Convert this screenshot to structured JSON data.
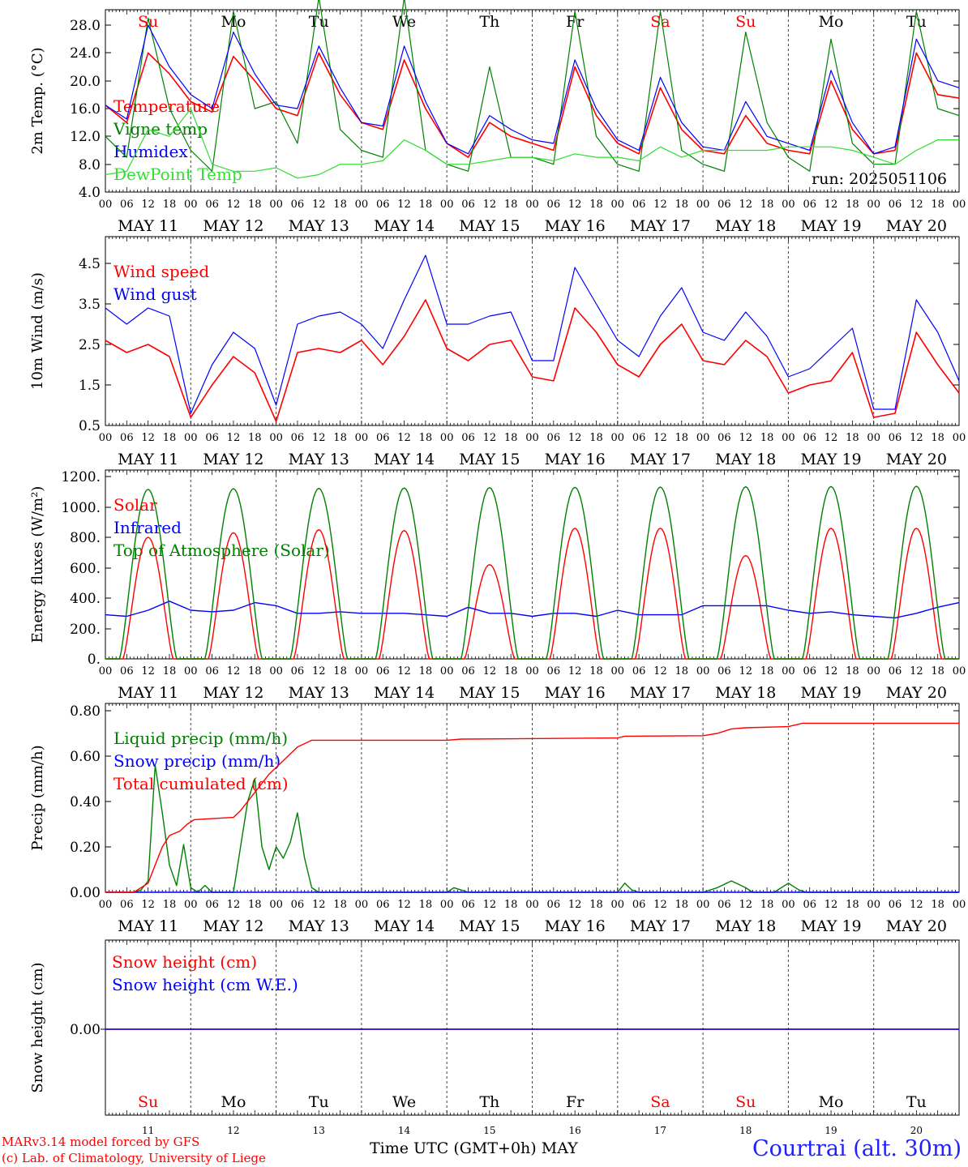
{
  "footer": {
    "model": "MARv3.14 model forced by GFS",
    "copyright": "(c) Lab. of Climatology, University of Liege",
    "xaxis": "Time UTC (GMT+0h)",
    "month": "MAY",
    "station": "Courtrai (alt. 30m)"
  },
  "run_label": "run: 2025051106",
  "days": {
    "names": [
      "Su",
      "Mo",
      "Tu",
      "We",
      "Th",
      "Fr",
      "Sa",
      "Su",
      "Mo",
      "Tu"
    ],
    "weekend": [
      true,
      false,
      false,
      false,
      false,
      false,
      true,
      true,
      false,
      false
    ],
    "dates": [
      "MAY 11",
      "MAY 12",
      "MAY 13",
      "MAY 14",
      "MAY 15",
      "MAY 16",
      "MAY 17",
      "MAY 18",
      "MAY 19",
      "MAY 20"
    ],
    "numbers": [
      "11",
      "12",
      "13",
      "14",
      "15",
      "16",
      "17",
      "18",
      "19",
      "20"
    ],
    "hour_ticks": [
      "00",
      "06",
      "12",
      "18"
    ],
    "final_tick": "00"
  },
  "colors": {
    "red": "#ff0000",
    "green": "#008000",
    "blue": "#0000ff",
    "lightgreen": "#33dd33",
    "weekend": "#ff0000",
    "weekday": "#000000"
  },
  "chart_data": [
    {
      "type": "line",
      "ylabel": "2m Temp. (°C)",
      "ylim": [
        4,
        30
      ],
      "yticks": [
        "4.0",
        "8.0",
        "12.0",
        "16.0",
        "20.0",
        "24.0",
        "28.0"
      ],
      "x": "hours since MAY 11 00 UTC, sampled every 6h (0..240)",
      "series": [
        {
          "name": "Temperature",
          "color": "red",
          "values": [
            16.5,
            14,
            24,
            21,
            17,
            15.5,
            23.5,
            20,
            16,
            15,
            24,
            18,
            14,
            13,
            23,
            16,
            11,
            9,
            14,
            12,
            11,
            10,
            22,
            15,
            11,
            9.5,
            19,
            13,
            10,
            9.5,
            15,
            11,
            10,
            9.5,
            20,
            13,
            9.5,
            10,
            24,
            18,
            17.5
          ]
        },
        {
          "name": "Vigne temp",
          "color": "green",
          "values": [
            12,
            9,
            29,
            16,
            10,
            7,
            30,
            16,
            17,
            11,
            32,
            13,
            10,
            9,
            32,
            10,
            8,
            7,
            22,
            9,
            9,
            8,
            30,
            12,
            8,
            7,
            30,
            10,
            8,
            7,
            27,
            14,
            9,
            7,
            26,
            11,
            8,
            8,
            30,
            16,
            15
          ]
        },
        {
          "name": "Humidex",
          "color": "blue",
          "values": [
            16.5,
            14.5,
            28,
            22,
            18,
            16,
            27,
            21,
            16.5,
            16,
            25,
            19,
            14,
            13.5,
            25,
            17,
            11,
            9.5,
            15,
            13,
            11.5,
            11,
            23,
            16,
            11.5,
            10,
            20.5,
            14,
            10.5,
            10,
            17,
            12,
            11,
            10,
            21.5,
            14,
            9.5,
            10.5,
            26,
            20,
            19
          ]
        },
        {
          "name": "DewPoint Temp",
          "color": "lightgreen",
          "values": [
            6.5,
            7,
            13,
            12,
            16,
            8,
            7,
            7,
            7.5,
            6,
            6.5,
            8,
            8,
            8.5,
            11.5,
            10,
            8,
            8,
            8.5,
            9,
            9,
            8.5,
            9.5,
            9,
            9,
            8.5,
            10.5,
            9,
            10,
            10,
            10,
            10,
            10.5,
            10.5,
            10.5,
            10,
            9,
            8,
            10,
            11.5,
            11.5
          ]
        }
      ]
    },
    {
      "type": "line",
      "ylabel": "10m Wind (m/s)",
      "ylim": [
        0.5,
        5.0
      ],
      "yticks": [
        "0.5",
        "1.5",
        "2.5",
        "3.5",
        "4.5"
      ],
      "x": "hours since MAY 11 00 UTC, sampled every 6h (0..240)",
      "series": [
        {
          "name": "Wind speed",
          "color": "red",
          "values": [
            2.6,
            2.3,
            2.5,
            2.2,
            0.7,
            1.5,
            2.2,
            1.8,
            0.6,
            2.3,
            2.4,
            2.3,
            2.6,
            2.0,
            2.7,
            3.6,
            2.4,
            2.1,
            2.5,
            2.6,
            1.7,
            1.6,
            3.4,
            2.8,
            2.0,
            1.7,
            2.5,
            3.0,
            2.1,
            2.0,
            2.6,
            2.2,
            1.3,
            1.5,
            1.6,
            2.3,
            0.7,
            0.8,
            2.8,
            2.0,
            1.3
          ]
        },
        {
          "name": "Wind gust",
          "color": "blue",
          "values": [
            3.4,
            3.0,
            3.4,
            3.2,
            0.8,
            2.0,
            2.8,
            2.4,
            1.0,
            3.0,
            3.2,
            3.3,
            3.0,
            2.4,
            3.6,
            4.7,
            3.0,
            3.0,
            3.2,
            3.3,
            2.1,
            2.1,
            4.4,
            3.5,
            2.6,
            2.2,
            3.2,
            3.9,
            2.8,
            2.6,
            3.3,
            2.7,
            1.7,
            1.9,
            2.4,
            2.9,
            0.9,
            0.9,
            3.6,
            2.8,
            1.6
          ]
        }
      ]
    },
    {
      "type": "line",
      "ylabel": "Energy fluxes (W/m²)",
      "ylim": [
        0,
        1200
      ],
      "yticks": [
        "0.",
        "200.",
        "400.",
        "600.",
        "800.",
        "1000.",
        "1200."
      ],
      "series": [
        {
          "name": "Solar",
          "color": "red",
          "peaks": [
            800,
            830,
            850,
            845,
            620,
            860,
            860,
            680,
            860,
            860
          ]
        },
        {
          "name": "Infrared",
          "color": "blue",
          "values": [
            290,
            280,
            320,
            380,
            320,
            310,
            320,
            370,
            350,
            300,
            300,
            310,
            300,
            300,
            300,
            290,
            280,
            340,
            300,
            300,
            280,
            300,
            300,
            280,
            320,
            290,
            290,
            290,
            350,
            350,
            350,
            350,
            320,
            300,
            310,
            290,
            280,
            270,
            300,
            340,
            370
          ]
        },
        {
          "name": "Top of Atmosphere (Solar)",
          "color": "green",
          "peaks": [
            1115,
            1120,
            1122,
            1125,
            1127,
            1129,
            1131,
            1133,
            1134,
            1136
          ]
        }
      ]
    },
    {
      "type": "line",
      "ylabel": "Precip (mm/h)",
      "ylim": [
        0,
        0.8
      ],
      "yticks": [
        "0.00",
        "0.20",
        "0.40",
        "0.60",
        "0.80"
      ],
      "series": [
        {
          "name": "Liquid precip (mm/h)",
          "color": "green",
          "points": [
            [
              0,
              0
            ],
            [
              8,
              0
            ],
            [
              10,
              0.01
            ],
            [
              12,
              0.05
            ],
            [
              14,
              0.56
            ],
            [
              16,
              0.35
            ],
            [
              18,
              0.12
            ],
            [
              20,
              0.03
            ],
            [
              22,
              0.21
            ],
            [
              24,
              0.02
            ],
            [
              26,
              0
            ],
            [
              28,
              0.03
            ],
            [
              30,
              0
            ],
            [
              36,
              0
            ],
            [
              40,
              0.4
            ],
            [
              42,
              0.5
            ],
            [
              44,
              0.2
            ],
            [
              46,
              0.1
            ],
            [
              48,
              0.2
            ],
            [
              50,
              0.15
            ],
            [
              52,
              0.22
            ],
            [
              54,
              0.35
            ],
            [
              56,
              0.15
            ],
            [
              58,
              0.02
            ],
            [
              60,
              0
            ],
            [
              96,
              0
            ],
            [
              98,
              0.02
            ],
            [
              100,
              0.01
            ],
            [
              102,
              0
            ],
            [
              144,
              0
            ],
            [
              146,
              0.04
            ],
            [
              148,
              0.01
            ],
            [
              150,
              0
            ],
            [
              168,
              0
            ],
            [
              172,
              0.02
            ],
            [
              176,
              0.05
            ],
            [
              180,
              0.02
            ],
            [
              182,
              0
            ],
            [
              188,
              0
            ],
            [
              192,
              0.04
            ],
            [
              195,
              0.01
            ],
            [
              197,
              0
            ],
            [
              240,
              0
            ]
          ]
        },
        {
          "name": "Snow precip (mm/h)",
          "color": "blue",
          "points": [
            [
              0,
              0
            ],
            [
              240,
              0
            ]
          ]
        },
        {
          "name": "Total cumulated (cm)",
          "color": "red",
          "points": [
            [
              0,
              0
            ],
            [
              8,
              0
            ],
            [
              12,
              0.04
            ],
            [
              14,
              0.12
            ],
            [
              16,
              0.2
            ],
            [
              18,
              0.25
            ],
            [
              21,
              0.27
            ],
            [
              23,
              0.3
            ],
            [
              25,
              0.32
            ],
            [
              36,
              0.33
            ],
            [
              38,
              0.36
            ],
            [
              42,
              0.44
            ],
            [
              46,
              0.52
            ],
            [
              50,
              0.58
            ],
            [
              54,
              0.64
            ],
            [
              58,
              0.67
            ],
            [
              96,
              0.67
            ],
            [
              100,
              0.675
            ],
            [
              144,
              0.68
            ],
            [
              146,
              0.688
            ],
            [
              168,
              0.69
            ],
            [
              172,
              0.7
            ],
            [
              176,
              0.72
            ],
            [
              180,
              0.725
            ],
            [
              192,
              0.73
            ],
            [
              196,
              0.745
            ],
            [
              240,
              0.745
            ]
          ]
        }
      ]
    },
    {
      "type": "line",
      "ylabel": "Snow height (cm)",
      "yticks": [
        "0.00"
      ],
      "series": [
        {
          "name": "Snow height (cm)",
          "color": "red",
          "points": [
            [
              0,
              0
            ],
            [
              240,
              0
            ]
          ]
        },
        {
          "name": "Snow height (cm W.E.)",
          "color": "blue",
          "points": [
            [
              0,
              0
            ],
            [
              240,
              0
            ]
          ]
        }
      ]
    }
  ]
}
